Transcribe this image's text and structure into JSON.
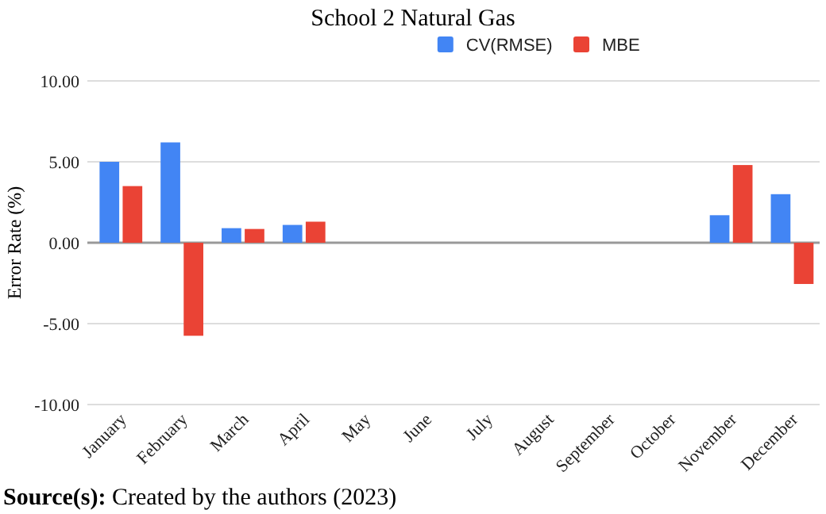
{
  "chart_data": {
    "type": "bar",
    "title": "School 2 Natural Gas",
    "ylabel": "Error Rate  (%)",
    "categories": [
      "January",
      "February",
      "March",
      "April",
      "May",
      "June",
      "July",
      "August",
      "September",
      "October",
      "November",
      "December"
    ],
    "series": [
      {
        "name": "CV(RMSE)",
        "color": "#4285f4",
        "values": [
          5.0,
          6.2,
          0.9,
          1.1,
          0,
          0,
          0,
          0,
          0,
          0,
          1.7,
          3.0
        ]
      },
      {
        "name": "MBE",
        "color": "#ea4335",
        "values": [
          3.5,
          -5.75,
          0.85,
          1.3,
          0,
          0,
          0,
          0,
          0,
          0,
          4.8,
          -2.55
        ]
      }
    ],
    "ylim": [
      -10,
      10
    ],
    "yticks": [
      {
        "value": -10,
        "label": "-10.00"
      },
      {
        "value": -5,
        "label": "-5.00"
      },
      {
        "value": 0,
        "label": "0.00"
      },
      {
        "value": 5,
        "label": "5.00"
      },
      {
        "value": 10,
        "label": "10.00"
      }
    ],
    "grid": "y",
    "legend": "top",
    "annotations": [
      "Source(s): Created by the authors (2023)"
    ]
  }
}
